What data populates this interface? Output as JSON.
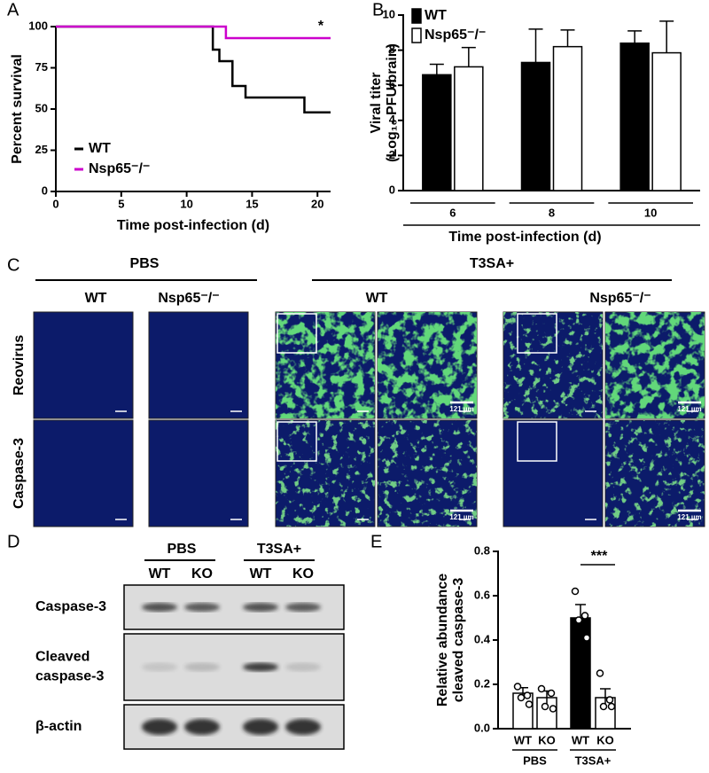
{
  "panel_labels": [
    "A",
    "B",
    "C",
    "D",
    "E"
  ],
  "chart_data": [
    {
      "type": "line",
      "step": true,
      "xlabel": "Time post-infection (d)",
      "ylabel": [
        "Percent survival"
      ],
      "xlim": [
        0,
        21
      ],
      "ylim": [
        0,
        100
      ],
      "xticks": [
        0,
        5,
        10,
        15,
        20
      ],
      "yticks": [
        0,
        25,
        50,
        75,
        100
      ],
      "series": [
        {
          "name": "WT",
          "color": "#000000",
          "x": [
            0,
            12,
            12.5,
            13.5,
            14.5,
            19,
            21
          ],
          "values": [
            100,
            86,
            79,
            64,
            57,
            48,
            48
          ]
        },
        {
          "name": "Nsp65⁻/⁻",
          "color": "#cc00cc",
          "x": [
            0,
            13,
            21
          ],
          "values": [
            100,
            93,
            93
          ]
        }
      ],
      "annotation": "*"
    },
    {
      "type": "bar",
      "ylabel": [
        "Viral titer",
        "(Log₁₀ PFU/brain)"
      ],
      "xlabel": "Time post-infection  (d)",
      "categories": [
        "6",
        "8",
        "10"
      ],
      "ylim": [
        0,
        10
      ],
      "yticks": [
        0,
        2,
        4,
        6,
        8,
        10
      ],
      "series": [
        {
          "name": "WT",
          "color": "#000000",
          "values": [
            6.6,
            7.3,
            8.4
          ],
          "errors": [
            0.6,
            1.9,
            0.7
          ]
        },
        {
          "name": "Nsp65⁻/⁻",
          "color": "#ffffff",
          "values": [
            7.05,
            8.2,
            7.85
          ],
          "errors": [
            1.1,
            0.95,
            1.8
          ]
        }
      ]
    },
    {
      "type": "dotbar",
      "ylabel": [
        "Relative abundance",
        "cleaved caspase-3"
      ],
      "categories": [
        "WT",
        "KO",
        "WT",
        "KO"
      ],
      "groups": [
        "PBS",
        "T3SA+"
      ],
      "colors": [
        "#ffffff",
        "#ffffff",
        "#000000",
        "#ffffff"
      ],
      "values": [
        0.16,
        0.14,
        0.5,
        0.14
      ],
      "errors": [
        0.025,
        0.03,
        0.06,
        0.04
      ],
      "points": [
        [
          0.19,
          0.15,
          0.14,
          0.11
        ],
        [
          0.18,
          0.16,
          0.1,
          0.09
        ],
        [
          0.62,
          0.51,
          0.49,
          0.41
        ],
        [
          0.25,
          0.13,
          0.1,
          0.1
        ]
      ],
      "ylim": [
        0,
        0.8
      ],
      "yticks": [
        {
          "value": 0,
          "label": "0.0"
        },
        {
          "value": 0.2,
          "label": "0.2"
        },
        {
          "value": 0.4,
          "label": "0.4"
        },
        {
          "value": 0.6,
          "label": "0.6"
        },
        {
          "value": 0.8,
          "label": "0.8"
        }
      ],
      "annotation": "***"
    }
  ],
  "panel_c": {
    "groups": [
      "PBS",
      "T3SA+"
    ],
    "columns": [
      "WT",
      "Nsp65⁻/⁻",
      "WT",
      "Nsp65⁻/⁻"
    ],
    "rows": [
      "Reovirus",
      "Caspase-3"
    ],
    "scale_labels": [
      "121 µm",
      "121 µm",
      "121 µm",
      "121 µm"
    ]
  },
  "panel_d": {
    "groups": [
      "PBS",
      "T3SA+"
    ],
    "lanes": [
      "WT",
      "KO",
      "WT",
      "KO"
    ],
    "rows": [
      [
        "Caspase-3"
      ],
      [
        "Cleaved",
        "caspase-3"
      ],
      [
        "β-actin"
      ]
    ]
  }
}
